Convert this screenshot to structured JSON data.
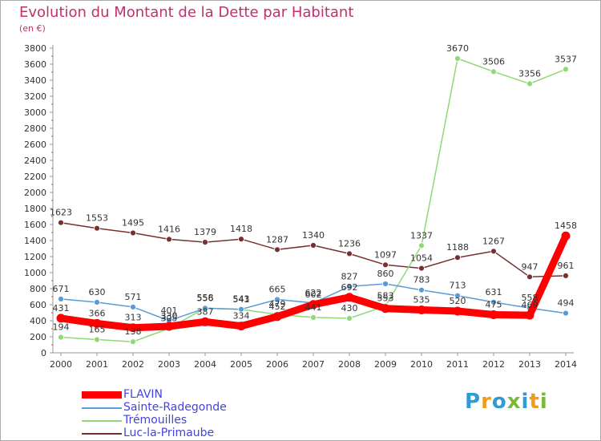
{
  "header": {
    "title": "Evolution du Montant de la Dette par Habitant",
    "unit": "(en €)"
  },
  "brand": {
    "logo_text": "Proxiti",
    "logo_colors": [
      "#2e9ad6",
      "#f29a1c",
      "#2e9ad6",
      "#7ab83d",
      "#2e9ad6",
      "#f29a1c",
      "#7ab83d"
    ]
  },
  "chart_data": {
    "type": "line",
    "title": "Evolution du Montant de la Dette par Habitant",
    "ylabel": "(en €)",
    "xlabel": "",
    "x": [
      "2000",
      "2001",
      "2002",
      "2003",
      "2004",
      "2005",
      "2006",
      "2007",
      "2008",
      "2009",
      "2010",
      "2011",
      "2012",
      "2013",
      "2014"
    ],
    "ylim": [
      0,
      3800
    ],
    "yticks": [
      0,
      200,
      400,
      600,
      800,
      1000,
      1200,
      1400,
      1600,
      1800,
      2000,
      2200,
      2400,
      2600,
      2800,
      3000,
      3200,
      3400,
      3600,
      3800
    ],
    "grid": false,
    "legend_position": "bottom-left",
    "series": [
      {
        "name": "FLAVIN",
        "color": "#ff0000",
        "values": [
          431,
          366,
          313,
          330,
          387,
          334,
          452,
          602,
          692,
          553,
          535,
          520,
          475,
          469,
          1458
        ],
        "labels": [
          "431",
          "366",
          "313",
          "330",
          "387",
          "334",
          "452",
          "602",
          "692",
          "553",
          "535",
          "520",
          "475",
          "469",
          "1458"
        ]
      },
      {
        "name": "Sainte-Radegonde",
        "color": "#5b9bd5",
        "values": [
          671,
          630,
          571,
          401,
          556,
          543,
          665,
          622,
          827,
          860,
          783,
          713,
          631,
          558,
          494
        ],
        "labels": [
          "671",
          "630",
          "571",
          "401",
          "556",
          "543",
          "665",
          "622",
          "827",
          "860",
          "783",
          "713",
          "631",
          "558",
          "494"
        ]
      },
      {
        "name": "Trémouilles",
        "color": "#8fd878",
        "values": [
          194,
          165,
          138,
          305,
          558,
          541,
          479,
          441,
          430,
          583,
          1337,
          3670,
          3506,
          3356,
          3537
        ],
        "labels": [
          "194",
          "165",
          "138",
          "305",
          "558",
          "541",
          "479",
          "441",
          "430",
          "583",
          "1337",
          "3670",
          "3506",
          "3356",
          "3537"
        ]
      },
      {
        "name": "Luc-la-Primaube",
        "color": "#7a2f2f",
        "values": [
          1623,
          1553,
          1495,
          1416,
          1379,
          1418,
          1287,
          1340,
          1236,
          1097,
          1054,
          1188,
          1267,
          947,
          961
        ],
        "labels": [
          "1623",
          "1553",
          "1495",
          "1416",
          "1379",
          "1418",
          "1287",
          "1340",
          "1236",
          "1097",
          "1054",
          "1188",
          "1267",
          "947",
          "961"
        ]
      }
    ]
  }
}
